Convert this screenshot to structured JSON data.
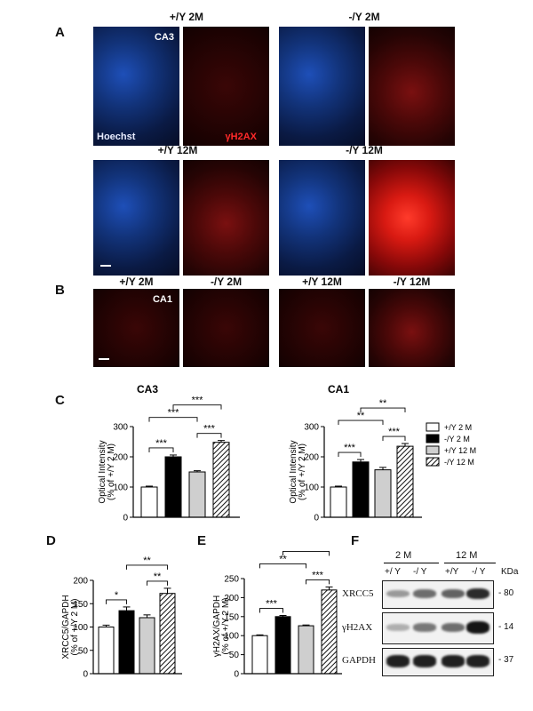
{
  "panels": {
    "A": "A",
    "B": "B",
    "C": "C",
    "D": "D",
    "E": "E",
    "F": "F"
  },
  "panelA": {
    "titles": [
      "+/Y 2M",
      "-/Y 2M",
      "+/Y 12M",
      "-/Y 12M"
    ],
    "region": "CA3",
    "stain_blue": "Hoechst",
    "stain_red": "γH2AX"
  },
  "panelB": {
    "titles": [
      "+/Y 2M",
      "-/Y 2M",
      "+/Y 12M",
      "-/Y 12M"
    ],
    "region": "CA1"
  },
  "chart_data": [
    {
      "type": "bar",
      "title": "CA3",
      "categories": [
        "+/Y 2 M",
        "-/Y 2 M",
        "+/Y 12 M",
        "-/Y 12 M"
      ],
      "values": [
        100,
        200,
        150,
        248
      ],
      "errors": [
        3,
        6,
        4,
        6
      ],
      "ylabel_line1": "Optical Intensity",
      "ylabel_line2": "(% of +/Y 2 M)",
      "ylim": [
        0,
        300
      ],
      "yticks": [
        "0",
        "100",
        "200",
        "300"
      ],
      "significance": [
        {
          "from": 0,
          "to": 1,
          "label": "***",
          "level": 0
        },
        {
          "from": 2,
          "to": 3,
          "label": "***",
          "level": 0
        },
        {
          "from": 0,
          "to": 2,
          "label": "***",
          "level": 1
        },
        {
          "from": 1,
          "to": 3,
          "label": "***",
          "level": 2
        }
      ]
    },
    {
      "type": "bar",
      "title": "CA1",
      "categories": [
        "+/Y 2 M",
        "-/Y 2 M",
        "+/Y 12 M",
        "-/Y 12 M"
      ],
      "values": [
        100,
        183,
        157,
        235
      ],
      "errors": [
        3,
        8,
        8,
        9
      ],
      "ylabel_line1": "Optical Intensity",
      "ylabel_line2": "(% of +/Y 2 M)",
      "ylim": [
        0,
        300
      ],
      "yticks": [
        "0",
        "100",
        "200",
        "300"
      ],
      "significance": [
        {
          "from": 0,
          "to": 1,
          "label": "***",
          "level": 0
        },
        {
          "from": 2,
          "to": 3,
          "label": "***",
          "level": 0
        },
        {
          "from": 0,
          "to": 2,
          "label": "**",
          "level": 1
        },
        {
          "from": 1,
          "to": 3,
          "label": "**",
          "level": 2
        }
      ]
    },
    {
      "type": "bar",
      "title": "",
      "categories": [
        "+/Y 2 M",
        "-/Y 2 M",
        "+/Y 12 M",
        "-/Y 12 M"
      ],
      "values": [
        100,
        135,
        120,
        172
      ],
      "errors": [
        4,
        8,
        6,
        11
      ],
      "ylabel_line1": "XRCC5/GAPDH",
      "ylabel_line2": "(% of +/Y 2 M)",
      "ylim": [
        0,
        200
      ],
      "yticks": [
        "0",
        "50",
        "100",
        "150",
        "200"
      ],
      "significance": [
        {
          "from": 0,
          "to": 1,
          "label": "*",
          "level": 0
        },
        {
          "from": 2,
          "to": 3,
          "label": "**",
          "level": 0
        },
        {
          "from": 1,
          "to": 3,
          "label": "**",
          "level": 1
        }
      ]
    },
    {
      "type": "bar",
      "title": "",
      "categories": [
        "+/Y 2 M",
        "-/Y 2 M",
        "+/Y 12 M",
        "-/Y 12 M"
      ],
      "values": [
        100,
        150,
        126,
        220
      ],
      "errors": [
        2,
        3,
        2,
        8
      ],
      "ylabel_line1": "γH2AX/GAPDH",
      "ylabel_line2": "(% of +/Y 2 M)",
      "ylim": [
        0,
        250
      ],
      "yticks": [
        "0",
        "50",
        "100",
        "150",
        "200",
        "250"
      ],
      "significance": [
        {
          "from": 0,
          "to": 1,
          "label": "***",
          "level": 0
        },
        {
          "from": 2,
          "to": 3,
          "label": "***",
          "level": 0
        },
        {
          "from": 0,
          "to": 2,
          "label": "**",
          "level": 1
        },
        {
          "from": 1,
          "to": 3,
          "label": "***",
          "level": 2
        }
      ]
    }
  ],
  "legend": [
    "+/Y 2 M",
    "-/Y 2 M",
    "+/Y 12 M",
    "-/Y 12 M"
  ],
  "western": {
    "groups": [
      "2 M",
      "12 M"
    ],
    "lanes": [
      "+/ Y",
      "-/ Y",
      "+/Y",
      "-/ Y"
    ],
    "unit": "KDa",
    "rows": [
      {
        "name": "XRCC5",
        "kda": "- 80",
        "intensity": [
          0.35,
          0.55,
          0.6,
          0.85
        ]
      },
      {
        "name": "γH2AX",
        "kda": "- 14",
        "intensity": [
          0.25,
          0.5,
          0.55,
          0.95
        ]
      },
      {
        "name": "GAPDH",
        "kda": "- 37",
        "intensity": [
          0.9,
          0.9,
          0.9,
          0.9
        ]
      }
    ]
  }
}
